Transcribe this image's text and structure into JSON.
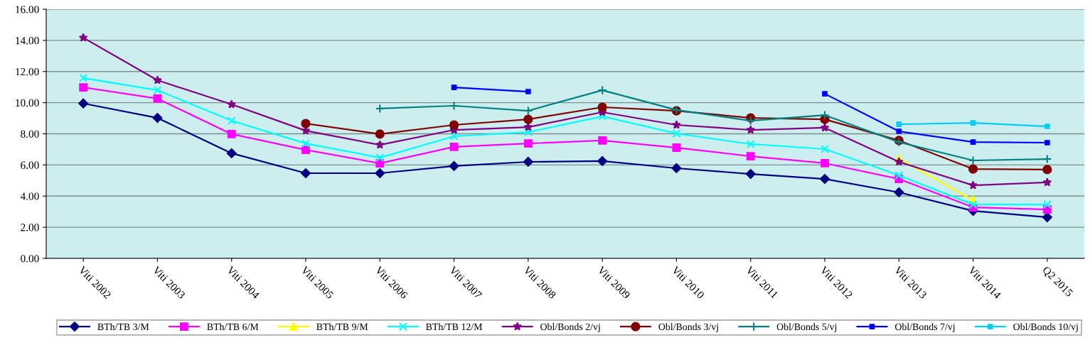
{
  "chart_data": {
    "type": "line",
    "categories": [
      "Viti 2002",
      "Viti 2003",
      "Viti 2004",
      "Viti 2005",
      "Viti 2006",
      "Viti 2007",
      "Viti 2008",
      "Viti 2009",
      "Viti 2010",
      "Viti 2011",
      "Viti 2012",
      "Viti 2013",
      "Viti 2014",
      "Q2 2015"
    ],
    "series": [
      {
        "name": "BTh/TB 3/M",
        "color": "#000080",
        "marker": "diamond",
        "values": [
          9.95,
          9.02,
          6.75,
          5.47,
          5.47,
          5.93,
          6.2,
          6.25,
          5.79,
          5.42,
          5.1,
          4.24,
          3.05,
          2.64
        ]
      },
      {
        "name": "BTh/TB 6/M",
        "color": "#ff00ff",
        "marker": "square",
        "values": [
          10.98,
          10.26,
          7.98,
          6.97,
          6.1,
          7.16,
          7.38,
          7.57,
          7.11,
          6.56,
          6.11,
          5.1,
          3.28,
          3.14
        ]
      },
      {
        "name": "BTh/TB 9/M",
        "color": "#ffff00",
        "marker": "triangle",
        "values": [
          null,
          null,
          null,
          null,
          null,
          null,
          null,
          null,
          null,
          null,
          null,
          6.4,
          3.74,
          null
        ]
      },
      {
        "name": "BTh/TB 12/M",
        "color": "#00ffff",
        "marker": "cross",
        "values": [
          11.58,
          10.8,
          8.84,
          7.38,
          6.47,
          7.84,
          8.11,
          9.12,
          8.02,
          7.34,
          7.02,
          5.33,
          3.46,
          3.46
        ]
      },
      {
        "name": "Obl/Bonds 2/vj",
        "color": "#800080",
        "marker": "star",
        "values": [
          14.17,
          11.44,
          9.89,
          8.2,
          7.29,
          8.25,
          8.43,
          9.39,
          8.57,
          8.25,
          8.39,
          6.2,
          4.69,
          4.88
        ]
      },
      {
        "name": "Obl/Bonds 3/vj",
        "color": "#800000",
        "marker": "circle",
        "values": [
          null,
          null,
          null,
          8.66,
          7.98,
          8.57,
          8.93,
          9.71,
          9.48,
          9.02,
          8.93,
          7.57,
          5.74,
          5.7
        ]
      },
      {
        "name": "Obl/Bonds 5/vj",
        "color": "#008080",
        "marker": "plus",
        "values": [
          null,
          null,
          null,
          null,
          9.62,
          9.8,
          9.48,
          10.8,
          9.53,
          8.84,
          9.2,
          7.47,
          6.29,
          6.38
        ]
      },
      {
        "name": "Obl/Bonds 7/vj",
        "color": "#0000ff",
        "marker": "square",
        "values": [
          null,
          null,
          null,
          null,
          null,
          10.98,
          10.71,
          null,
          null,
          null,
          10.57,
          8.16,
          7.47,
          7.43
        ]
      },
      {
        "name": "Obl/Bonds 10/vj",
        "color": "#00ccff",
        "marker": "square",
        "values": [
          null,
          null,
          null,
          null,
          null,
          null,
          null,
          null,
          null,
          null,
          null,
          8.61,
          8.7,
          8.48
        ]
      }
    ],
    "ylim": [
      0,
      16
    ],
    "yticks": [
      {
        "value": 0,
        "label": "0.00"
      },
      {
        "value": 2,
        "label": "2.00"
      },
      {
        "value": 4,
        "label": "4.00"
      },
      {
        "value": 6,
        "label": "6.00"
      },
      {
        "value": 8,
        "label": "8.00"
      },
      {
        "value": 10,
        "label": "10.00"
      },
      {
        "value": 12,
        "label": "12.00"
      },
      {
        "value": 14,
        "label": "14.00"
      },
      {
        "value": 16,
        "label": "16.00"
      }
    ],
    "grid": "y",
    "legend": "bottom",
    "line_style": "solid"
  }
}
